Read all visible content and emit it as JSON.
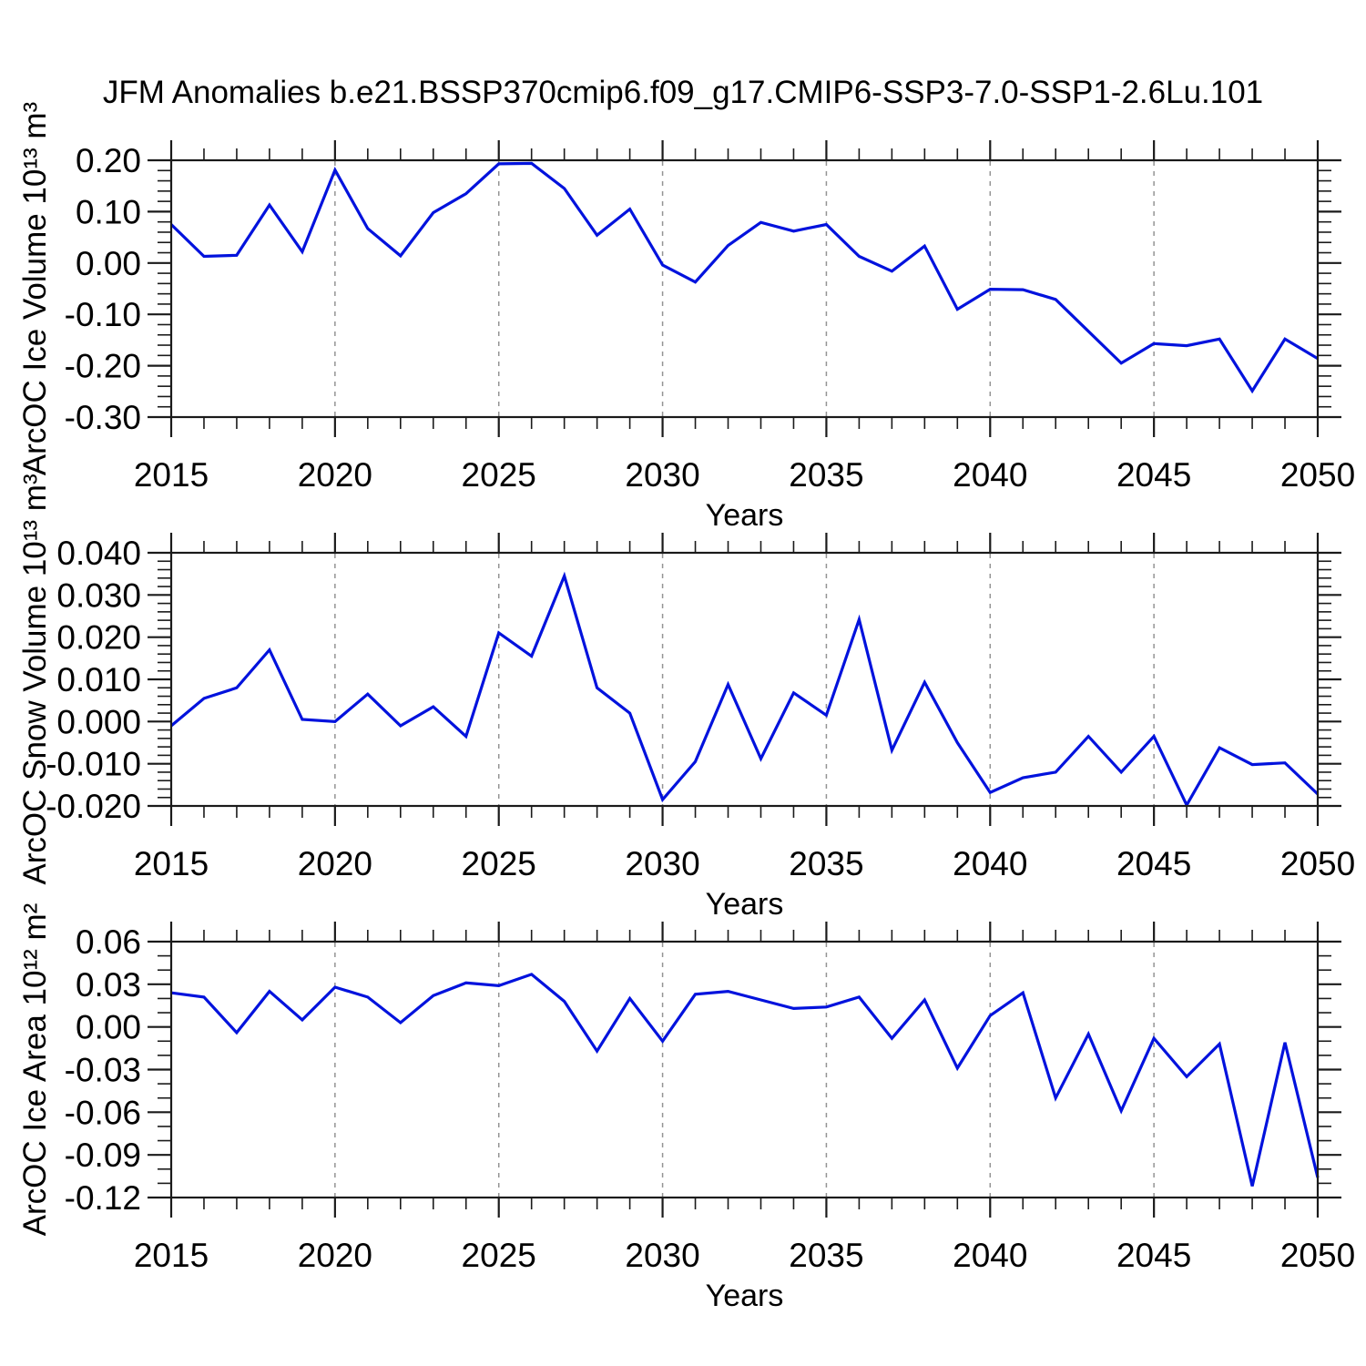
{
  "title": "JFM Anomalies b.e21.BSSP370cmip6.f09_g17.CMIP6-SSP3-7.0-SSP1-2.6Lu.101",
  "style": {
    "line_color": "#0012dd",
    "axis_color": "#1a1a1a",
    "grid_color": "#949494",
    "text_color": "#000000"
  },
  "x_axis": {
    "label": "Years",
    "min": 2015,
    "max": 2050,
    "major_tick_step": 5,
    "minor_tick_step": 1,
    "major_tick_labels": [
      "2015",
      "2020",
      "2025",
      "2030",
      "2035",
      "2040",
      "2045",
      "2050"
    ],
    "gridlines_at": [
      2020,
      2025,
      2030,
      2035,
      2040,
      2045
    ],
    "years": [
      2015,
      2016,
      2017,
      2018,
      2019,
      2020,
      2021,
      2022,
      2023,
      2024,
      2025,
      2026,
      2027,
      2028,
      2029,
      2030,
      2031,
      2032,
      2033,
      2034,
      2035,
      2036,
      2037,
      2038,
      2039,
      2040,
      2041,
      2042,
      2043,
      2044,
      2045,
      2046,
      2047,
      2048,
      2049,
      2050
    ]
  },
  "chart_data": [
    {
      "type": "line",
      "name": "ice-volume",
      "ylabel": "ArcOC Ice Volume 10¹³ m³",
      "xlabel": "Years",
      "ylim": [
        -0.3,
        0.2
      ],
      "ytick_step": 0.1,
      "yminor_step": 0.02,
      "ytick_decimals": 2,
      "ytick_labels": [
        "0.20",
        "0.10",
        "0.00",
        "-0.10",
        "-0.20",
        "-0.30"
      ],
      "grid": "vertical-dashed",
      "legend": "none",
      "values": [
        0.075,
        0.013,
        0.015,
        0.113,
        0.022,
        0.181,
        0.067,
        0.014,
        0.098,
        0.135,
        0.193,
        0.194,
        0.145,
        0.054,
        0.105,
        -0.004,
        -0.037,
        0.034,
        0.079,
        0.062,
        0.075,
        0.013,
        -0.016,
        0.033,
        -0.09,
        -0.051,
        -0.052,
        -0.071,
        -0.133,
        -0.195,
        -0.157,
        -0.161,
        -0.148,
        -0.249,
        -0.148,
        -0.186
      ]
    },
    {
      "type": "line",
      "name": "snow-volume",
      "ylabel": "ArcOC Snow Volume 10¹³ m³",
      "xlabel": "Years",
      "ylim": [
        -0.02,
        0.04
      ],
      "ytick_step": 0.01,
      "yminor_step": 0.002,
      "ytick_decimals": 3,
      "ytick_labels": [
        "0.040",
        "0.030",
        "0.020",
        "0.010",
        "0.000",
        "-0.010",
        "-0.020"
      ],
      "grid": "vertical-dashed",
      "legend": "none",
      "values": [
        -0.001,
        0.0055,
        0.008,
        0.017,
        0.0005,
        0.0,
        0.0065,
        -0.001,
        0.0035,
        -0.0035,
        0.021,
        0.0155,
        0.0345,
        0.008,
        0.002,
        -0.0185,
        -0.0095,
        0.0088,
        -0.0088,
        0.0068,
        0.0015,
        0.0242,
        -0.0068,
        0.0093,
        -0.005,
        -0.0168,
        -0.0133,
        -0.012,
        -0.0035,
        -0.012,
        -0.0035,
        -0.0198,
        -0.0062,
        -0.0102,
        -0.0098,
        -0.0172
      ]
    },
    {
      "type": "line",
      "name": "ice-area",
      "ylabel": "ArcOC Ice Area 10¹² m²",
      "xlabel": "Years",
      "ylim": [
        -0.12,
        0.06
      ],
      "ytick_step": 0.03,
      "yminor_step": 0.01,
      "ytick_decimals": 2,
      "ytick_labels": [
        "0.06",
        "0.03",
        "0.00",
        "-0.03",
        "-0.06",
        "-0.09",
        "-0.12"
      ],
      "grid": "vertical-dashed",
      "legend": "none",
      "values": [
        0.024,
        0.021,
        -0.004,
        0.025,
        0.005,
        0.028,
        0.021,
        0.003,
        0.022,
        0.031,
        0.029,
        0.037,
        0.018,
        -0.017,
        0.02,
        -0.01,
        0.023,
        0.025,
        0.019,
        0.013,
        0.014,
        0.021,
        -0.008,
        0.019,
        -0.029,
        0.008,
        0.024,
        -0.05,
        -0.005,
        -0.059,
        -0.008,
        -0.035,
        -0.012,
        -0.112,
        -0.011,
        -0.106
      ]
    }
  ]
}
